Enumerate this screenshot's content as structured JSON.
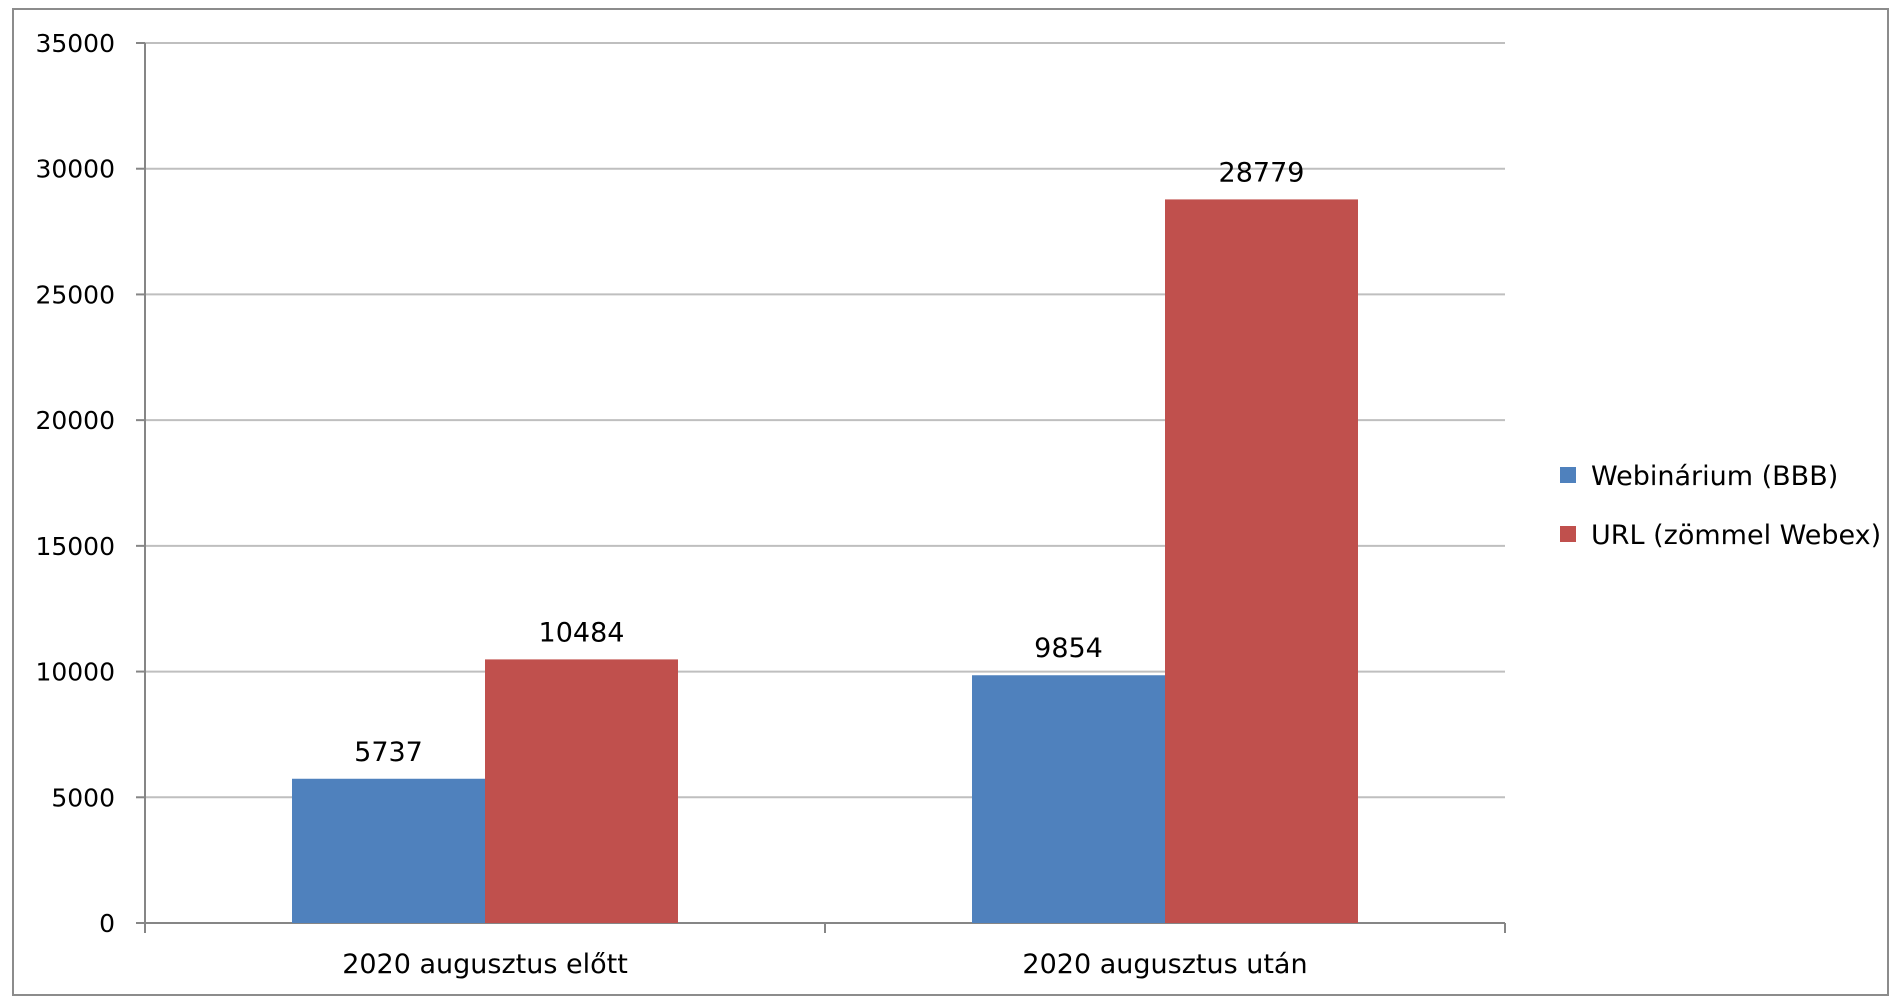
{
  "chart_data": {
    "type": "bar",
    "title": "",
    "xlabel": "",
    "ylabel": "",
    "categories": [
      "2020 augusztus előtt",
      "2020 augusztus után"
    ],
    "series": [
      {
        "name": "Webinárium (BBB)",
        "values": [
          5737,
          9854
        ],
        "color": "#4f81bd"
      },
      {
        "name": "URL (zömmel Webex)",
        "values": [
          10484,
          28779
        ],
        "color": "#c0504d"
      }
    ],
    "ylim": [
      0,
      35000
    ],
    "yticks": [
      0,
      5000,
      10000,
      15000,
      20000,
      25000,
      30000,
      35000
    ],
    "grid": true,
    "legend_position": "right",
    "gridline_color": "#bfbfbf",
    "axis_color": "#868686"
  }
}
